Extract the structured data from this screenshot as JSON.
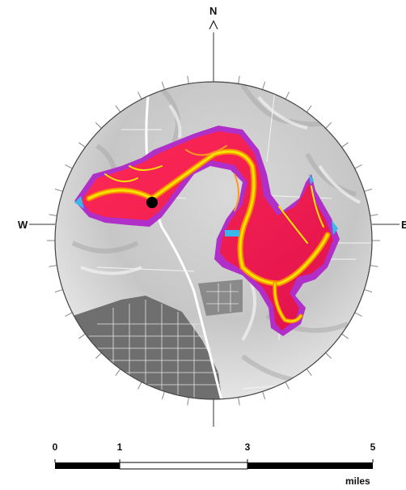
{
  "compass": {
    "north": "N",
    "west": "W",
    "east": "E"
  },
  "scale_bar": {
    "ticks": [
      "0",
      "1",
      "3",
      "5"
    ],
    "unit": "miles"
  },
  "colors": {
    "flood_high": "#f2e600",
    "flood_mid": "#ff8a00",
    "flood_deep": "#e8164a",
    "flood_edge": "#b02fc9",
    "water_light": "#3ab7e8",
    "terrain": "#bdbdbd",
    "town": "#6f6f6f",
    "marker": "#000000"
  },
  "icons": {
    "marker": "location-dot-icon",
    "north_arrow": "arrow-up-icon"
  }
}
